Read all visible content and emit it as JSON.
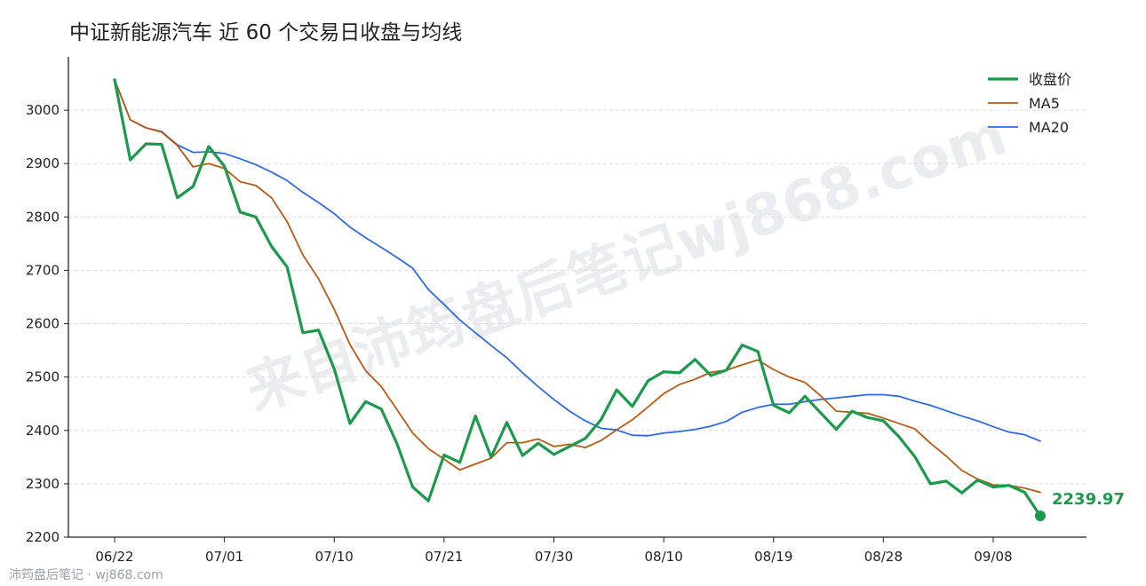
{
  "watermark": "来自沛筠盘后笔记wj868.com",
  "footer": "沛筠盘后笔记 · wj868.com",
  "colors": {
    "close": "#1a9a4a",
    "ma5": "#b85a14",
    "ma20": "#2e6be0"
  },
  "chart_data": {
    "type": "line",
    "title": "中证新能源汽车 近 60 个交易日收盘与均线",
    "xlabel": "",
    "ylabel": "",
    "ylim": [
      2200,
      3100
    ],
    "yticks": [
      2200,
      2300,
      2400,
      2500,
      2600,
      2700,
      2800,
      2900,
      3000
    ],
    "x_ticks": [
      {
        "i": 0,
        "label": "06/22"
      },
      {
        "i": 7,
        "label": "07/01"
      },
      {
        "i": 14,
        "label": "07/10"
      },
      {
        "i": 21,
        "label": "07/21"
      },
      {
        "i": 28,
        "label": "07/30"
      },
      {
        "i": 35,
        "label": "08/10"
      },
      {
        "i": 42,
        "label": "08/19"
      },
      {
        "i": 49,
        "label": "08/28"
      },
      {
        "i": 56,
        "label": "09/08"
      }
    ],
    "grid": true,
    "legend_position": "top-right",
    "last_label": "2239.97",
    "series": [
      {
        "name": "收盘价",
        "key": "close",
        "values": [
          3057,
          2907,
          2937,
          2936,
          2836,
          2857,
          2932,
          2895,
          2809,
          2800,
          2745,
          2706,
          2583,
          2588,
          2515,
          2413,
          2454,
          2440,
          2375,
          2294,
          2268,
          2354,
          2340,
          2427,
          2350,
          2415,
          2353,
          2376,
          2355,
          2370,
          2385,
          2420,
          2476,
          2445,
          2493,
          2510,
          2508,
          2533,
          2503,
          2513,
          2560,
          2548,
          2447,
          2433,
          2464,
          2433,
          2402,
          2436,
          2424,
          2418,
          2388,
          2351,
          2300,
          2305,
          2283,
          2307,
          2294,
          2297,
          2284,
          2240
        ]
      },
      {
        "name": "MA5",
        "key": "ma5",
        "values": [
          3057,
          2982,
          2967,
          2959,
          2934,
          2894,
          2900,
          2891,
          2866,
          2859,
          2836,
          2791,
          2729,
          2684,
          2627,
          2561,
          2512,
          2482,
          2439,
          2395,
          2366,
          2346,
          2326,
          2337,
          2348,
          2377,
          2377,
          2384,
          2370,
          2374,
          2368,
          2381,
          2401,
          2420,
          2444,
          2469,
          2486,
          2496,
          2509,
          2513,
          2523,
          2532,
          2514,
          2500,
          2490,
          2465,
          2436,
          2434,
          2432,
          2423,
          2413,
          2403,
          2376,
          2352,
          2325,
          2309,
          2298,
          2297,
          2292,
          2284
        ]
      },
      {
        "name": "MA20",
        "key": "ma20",
        "values": [
          3057,
          2982,
          2967,
          2960,
          2935,
          2921,
          2922,
          2919,
          2909,
          2898,
          2884,
          2868,
          2846,
          2827,
          2806,
          2781,
          2761,
          2743,
          2724,
          2704,
          2664,
          2636,
          2607,
          2583,
          2559,
          2536,
          2508,
          2482,
          2458,
          2436,
          2418,
          2404,
          2401,
          2391,
          2390,
          2395,
          2398,
          2402,
          2408,
          2417,
          2434,
          2443,
          2449,
          2449,
          2454,
          2458,
          2461,
          2464,
          2467,
          2467,
          2464,
          2455,
          2447,
          2437,
          2427,
          2418,
          2407,
          2397,
          2392,
          2380
        ]
      }
    ]
  }
}
